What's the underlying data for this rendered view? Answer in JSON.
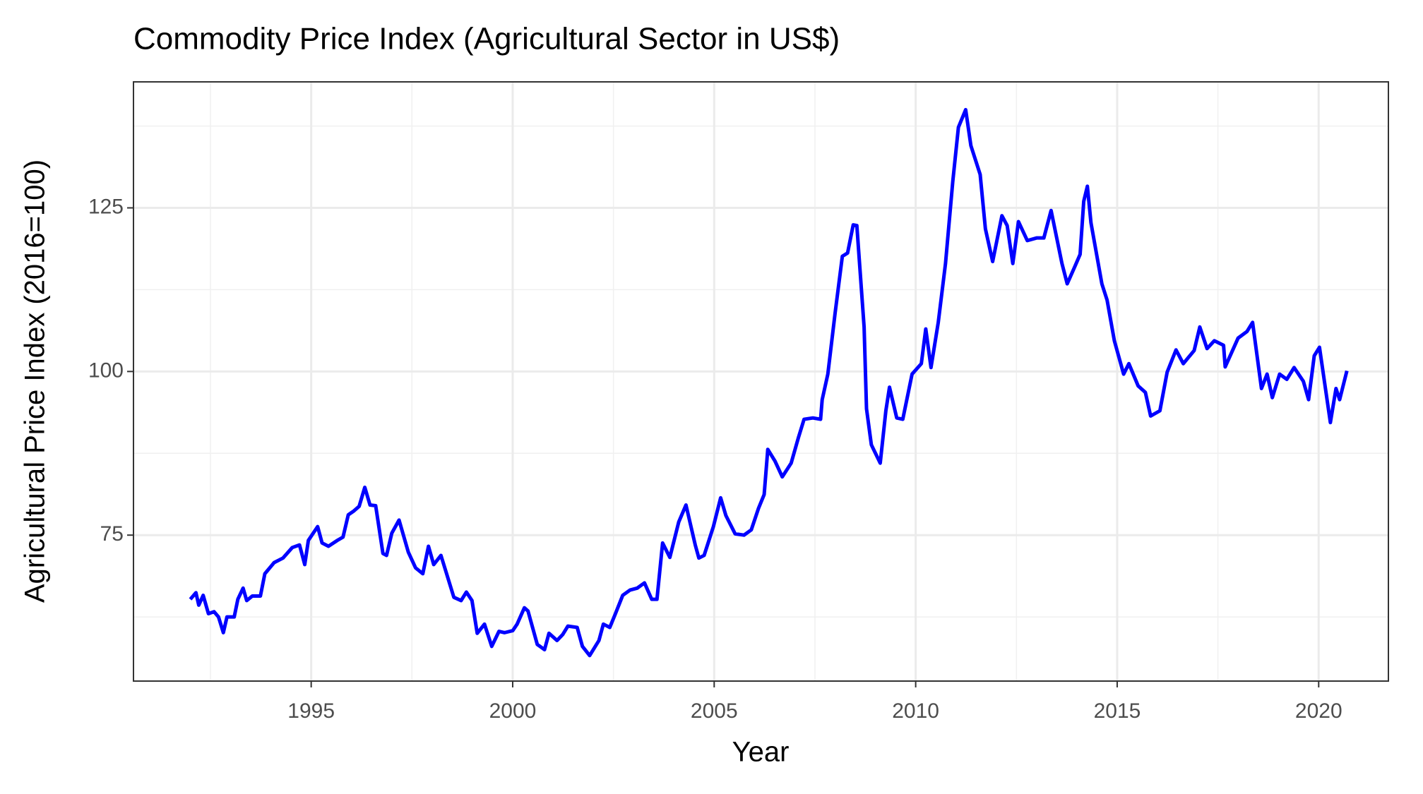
{
  "chart_data": {
    "type": "line",
    "title": "Commodity Price Index (Agricultural Sector in US$)",
    "x_label": "Year",
    "y_label": "Agricultural Price Index (2016=100)",
    "color": "#0000ff",
    "grid": true,
    "xlim": [
      1990.59,
      2021.73
    ],
    "ylim": [
      52.7,
      144.25
    ],
    "xticks": [
      1995,
      2000,
      2005,
      2010,
      2015,
      2020
    ],
    "yticks": [
      75,
      100,
      125
    ],
    "x_minor_ticks": [
      1992.5,
      1997.5,
      2002.5,
      2007.5,
      2012.5,
      2017.5
    ],
    "y_minor_ticks": [
      62.5,
      87.5,
      112.5,
      137.5
    ],
    "x": [
      1992.0,
      1992.14,
      1992.21,
      1992.32,
      1992.45,
      1992.59,
      1992.7,
      1992.82,
      1992.91,
      1993.09,
      1993.18,
      1993.31,
      1993.4,
      1993.54,
      1993.74,
      1993.85,
      1994.08,
      1994.3,
      1994.53,
      1994.71,
      1994.84,
      1994.93,
      1995.16,
      1995.27,
      1995.43,
      1995.65,
      1995.79,
      1995.92,
      1996.06,
      1996.19,
      1996.33,
      1996.46,
      1996.6,
      1996.78,
      1996.87,
      1997.0,
      1997.18,
      1997.41,
      1997.59,
      1997.77,
      1997.91,
      1998.04,
      1998.22,
      1998.54,
      1998.72,
      1998.85,
      1998.99,
      1999.12,
      1999.3,
      1999.48,
      1999.66,
      1999.8,
      2000.0,
      2000.11,
      2000.29,
      2000.38,
      2000.61,
      2000.79,
      2000.9,
      2001.1,
      2001.24,
      2001.37,
      2001.6,
      2001.73,
      2001.91,
      2002.14,
      2002.25,
      2002.41,
      2002.55,
      2002.73,
      2002.91,
      2003.09,
      2003.27,
      2003.45,
      2003.58,
      2003.72,
      2003.9,
      2004.12,
      2004.3,
      2004.53,
      2004.62,
      2004.75,
      2004.98,
      2005.16,
      2005.29,
      2005.52,
      2005.74,
      2005.92,
      2006.1,
      2006.24,
      2006.33,
      2006.51,
      2006.69,
      2006.91,
      2007.09,
      2007.23,
      2007.45,
      2007.64,
      2007.68,
      2007.82,
      2008.0,
      2008.18,
      2008.31,
      2008.45,
      2008.54,
      2008.72,
      2008.78,
      2008.9,
      2009.01,
      2009.12,
      2009.26,
      2009.35,
      2009.53,
      2009.68,
      2009.91,
      2010.14,
      2010.25,
      2010.38,
      2010.56,
      2010.74,
      2010.92,
      2011.06,
      2011.24,
      2011.37,
      2011.6,
      2011.73,
      2011.91,
      2012.14,
      2012.27,
      2012.41,
      2012.55,
      2012.77,
      2013.0,
      2013.18,
      2013.36,
      2013.63,
      2013.76,
      2013.94,
      2014.08,
      2014.17,
      2014.26,
      2014.35,
      2014.53,
      2014.62,
      2014.75,
      2014.93,
      2015.16,
      2015.29,
      2015.52,
      2015.7,
      2015.83,
      2016.06,
      2016.24,
      2016.46,
      2016.64,
      2016.91,
      2017.05,
      2017.23,
      2017.41,
      2017.64,
      2017.68,
      2018.0,
      2018.22,
      2018.36,
      2018.58,
      2018.72,
      2018.85,
      2019.03,
      2019.21,
      2019.39,
      2019.62,
      2019.75,
      2019.89,
      2020.02,
      2020.29,
      2020.43,
      2020.52,
      2020.7
    ],
    "values": [
      65.2,
      66.2,
      64.3,
      65.8,
      63.0,
      63.3,
      62.5,
      60.1,
      62.5,
      62.5,
      65.2,
      66.9,
      65.0,
      65.7,
      65.7,
      69.1,
      70.8,
      71.5,
      73.1,
      73.5,
      70.5,
      74.2,
      76.3,
      73.8,
      73.3,
      74.2,
      74.7,
      78.1,
      78.7,
      79.4,
      82.3,
      79.6,
      79.5,
      72.2,
      71.9,
      75.3,
      77.3,
      72.4,
      70.0,
      69.1,
      73.3,
      70.5,
      71.9,
      65.5,
      65.0,
      66.3,
      65.0,
      60.0,
      61.4,
      58.0,
      60.3,
      60.1,
      60.4,
      61.4,
      63.9,
      63.4,
      58.3,
      57.5,
      60.0,
      58.9,
      59.8,
      61.1,
      60.9,
      58.0,
      56.6,
      58.9,
      61.4,
      60.9,
      63.0,
      65.8,
      66.6,
      66.9,
      67.7,
      65.2,
      65.2,
      73.8,
      71.6,
      77.0,
      79.6,
      73.5,
      71.5,
      71.9,
      76.3,
      80.7,
      78.0,
      75.2,
      75.0,
      75.8,
      79.1,
      81.2,
      88.1,
      86.3,
      83.9,
      86.0,
      89.9,
      92.7,
      92.9,
      92.7,
      95.7,
      99.6,
      108.9,
      117.6,
      118.1,
      122.4,
      122.3,
      106.8,
      94.3,
      88.8,
      87.4,
      86.0,
      94.0,
      97.6,
      92.9,
      92.7,
      99.6,
      101.2,
      106.5,
      100.6,
      107.5,
      116.5,
      129.0,
      137.3,
      140.0,
      134.5,
      130.1,
      121.8,
      116.8,
      123.8,
      122.3,
      116.5,
      122.9,
      120.0,
      120.4,
      120.4,
      124.6,
      116.5,
      113.4,
      115.9,
      117.9,
      126.0,
      128.3,
      122.7,
      116.5,
      113.4,
      110.9,
      104.7,
      99.6,
      101.2,
      97.8,
      96.8,
      93.2,
      94.0,
      99.9,
      103.3,
      101.2,
      103.2,
      106.8,
      103.5,
      104.7,
      104.0,
      100.7,
      105.1,
      106.1,
      107.5,
      97.4,
      99.6,
      96.0,
      99.6,
      98.8,
      100.6,
      98.5,
      95.7,
      102.4,
      103.7,
      92.2,
      97.4,
      95.7,
      100.1
    ]
  }
}
